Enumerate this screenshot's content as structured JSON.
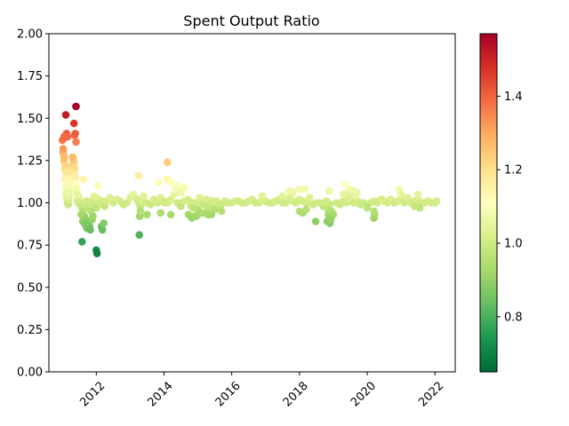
{
  "chart_data": {
    "type": "scatter",
    "title": "Spent Output Ratio",
    "xlabel": "",
    "ylabel": "",
    "xlim": [
      2010.6,
      2022.6
    ],
    "ylim": [
      0.0,
      2.0
    ],
    "x_ticks": [
      2012,
      2014,
      2016,
      2018,
      2020,
      2022
    ],
    "x_tick_labels": [
      "2012",
      "2014",
      "2016",
      "2018",
      "2020",
      "2022"
    ],
    "y_ticks": [
      0.0,
      0.25,
      0.5,
      0.75,
      1.0,
      1.25,
      1.5,
      1.75,
      2.0
    ],
    "y_tick_labels": [
      "0.00",
      "0.25",
      "0.50",
      "0.75",
      "1.00",
      "1.25",
      "1.50",
      "1.75",
      "2.00"
    ],
    "grid": false,
    "colormap": "RdYlGn_r",
    "colorbar": {
      "range": [
        0.65,
        1.57
      ],
      "ticks": [
        0.8,
        1.0,
        1.2,
        1.4
      ],
      "tick_labels": [
        "0.8",
        "1.0",
        "1.2",
        "1.4"
      ]
    },
    "x": [
      2011.0,
      2011.02,
      2011.04,
      2011.05,
      2011.07,
      2011.08,
      2011.1,
      2011.11,
      2011.12,
      2011.14,
      2011.15,
      2011.17,
      2011.18,
      2011.2,
      2011.22,
      2011.24,
      2011.26,
      2011.28,
      2011.3,
      2011.32,
      2011.34,
      2011.36,
      2011.38,
      2011.4,
      2011.42,
      2011.44,
      2011.46,
      2011.48,
      2011.02,
      2011.05,
      2011.08,
      2011.1,
      2011.12,
      2011.15,
      2011.2,
      2011.25,
      2011.3,
      2011.35,
      2011.38,
      2011.4,
      2011.42,
      2011.45,
      2011.36,
      2011.38,
      2011.4,
      2011.34,
      2011.1,
      2011.12,
      2011.05,
      2011.15,
      2011.5,
      2011.55,
      2011.6,
      2011.65,
      2011.7,
      2011.75,
      2011.8,
      2011.85,
      2011.9,
      2011.95,
      2012.0,
      2012.05,
      2012.1,
      2012.15,
      2012.2,
      2012.25,
      2011.4,
      2011.55,
      2011.65,
      2011.7,
      2011.75,
      2011.8,
      2011.85,
      2011.88,
      2011.9,
      2011.6,
      2011.72,
      2011.82,
      2011.68,
      2012.15,
      2012.18,
      2012.22,
      2011.95,
      2012.05,
      2011.58,
      2011.62,
      2012.0,
      2012.02,
      2012.3,
      2012.4,
      2012.5,
      2012.6,
      2012.7,
      2012.8,
      2012.9,
      2013.0,
      2013.1,
      2013.2,
      2013.25,
      2013.3,
      2013.35,
      2013.4,
      2013.5,
      2013.6,
      2013.7,
      2013.8,
      2013.9,
      2014.0,
      2014.1,
      2014.2,
      2014.3,
      2014.4,
      2014.5,
      2014.6,
      2014.7,
      2013.25,
      2013.28,
      2013.3,
      2013.5,
      2013.9,
      2014.1,
      2014.2,
      2014.4,
      2014.6,
      2013.27,
      2014.1,
      2014.2,
      2014.35,
      2014.5,
      2013.85,
      2014.0,
      2014.8,
      2014.9,
      2015.0,
      2015.1,
      2015.2,
      2015.3,
      2015.4,
      2015.5,
      2015.6,
      2015.7,
      2015.8,
      2015.9,
      2014.75,
      2014.85,
      2014.95,
      2015.05,
      2015.15,
      2015.25,
      2015.35,
      2015.45,
      2015.55,
      2015.65,
      2014.72,
      2014.82,
      2014.95,
      2015.15,
      2015.3,
      2015.5,
      2015.7,
      2014.9,
      2015.1,
      2015.4,
      2016.0,
      2016.2,
      2016.4,
      2016.6,
      2016.8,
      2017.0,
      2017.2,
      2017.4,
      2017.6,
      2017.8,
      2018.0,
      2018.2,
      2018.4,
      2018.6,
      2018.8,
      2016.1,
      2016.3,
      2016.5,
      2016.7,
      2016.9,
      2017.1,
      2017.3,
      2017.5,
      2017.7,
      2017.9,
      2018.1,
      2018.3,
      2018.5,
      2018.7,
      2018.9,
      2016.9,
      2017.5,
      2017.8,
      2018.0,
      2018.15,
      2018.3,
      2017.7,
      2018.0,
      2018.1,
      2018.2,
      2018.48,
      2018.8,
      2018.85,
      2018.9,
      2018.95,
      2019.0,
      2018.82,
      2018.9,
      2018.75,
      2018.88,
      2018.92,
      2019.1,
      2019.2,
      2019.3,
      2019.4,
      2019.5,
      2019.6,
      2019.7,
      2019.8,
      2019.9,
      2020.0,
      2020.1,
      2020.2,
      2020.3,
      2020.4,
      2020.5,
      2020.6,
      2020.7,
      2020.8,
      2020.9,
      2021.0,
      2021.1,
      2021.2,
      2021.3,
      2021.4,
      2021.5,
      2021.6,
      2021.7,
      2021.8,
      2021.9,
      2022.0,
      2022.05,
      2019.35,
      2019.45,
      2019.55,
      2019.65,
      2019.5,
      2019.4,
      2019.6,
      2020.45,
      2020.95,
      2021.55,
      2021.5,
      2021.4,
      2020.2,
      2020.22,
      2020.2,
      2019.3,
      2019.45,
      2019.7,
      2021.0,
      2020.0,
      2019.8
    ],
    "y": [
      1.37,
      1.3,
      1.28,
      1.25,
      1.2,
      1.14,
      1.1,
      1.06,
      1.04,
      1.02,
      1.0,
      0.99,
      1.02,
      1.04,
      1.08,
      1.12,
      1.16,
      1.2,
      1.23,
      1.26,
      1.24,
      1.2,
      1.15,
      1.1,
      1.06,
      1.02,
      1.0,
      1.03,
      1.32,
      1.27,
      1.22,
      1.18,
      1.09,
      1.06,
      1.13,
      1.18,
      1.27,
      1.21,
      1.16,
      1.11,
      1.08,
      1.05,
      1.4,
      1.41,
      1.36,
      1.47,
      1.52,
      1.41,
      1.39,
      1.39,
      1.0,
      0.98,
      0.95,
      0.99,
      1.01,
      0.97,
      0.99,
      1.0,
      1.02,
      1.0,
      0.97,
      1.02,
      1.0,
      1.01,
      0.99,
      0.98,
      1.57,
      0.93,
      0.92,
      0.9,
      0.88,
      0.86,
      0.95,
      0.9,
      0.92,
      0.89,
      0.85,
      0.84,
      0.87,
      0.86,
      0.84,
      0.88,
      1.04,
      1.1,
      0.77,
      1.14,
      0.72,
      0.7,
      1.01,
      1.03,
      1.0,
      1.02,
      1.01,
      0.99,
      1.0,
      1.03,
      1.05,
      1.02,
      1.0,
      0.98,
      1.01,
      1.04,
      1.0,
      0.99,
      1.02,
      1.0,
      1.03,
      1.01,
      1.0,
      1.02,
      1.05,
      1.0,
      0.98,
      1.01,
      1.02,
      1.16,
      0.92,
      0.95,
      0.93,
      0.94,
      1.24,
      0.93,
      1.1,
      1.09,
      0.81,
      1.14,
      1.12,
      1.08,
      1.06,
      1.12,
      1.0,
      0.98,
      1.0,
      0.96,
      1.02,
      0.99,
      0.97,
      1.01,
      0.98,
      1.0,
      0.99,
      1.01,
      1.0,
      1.01,
      0.97,
      1.0,
      1.03,
      0.99,
      1.02,
      0.98,
      1.0,
      1.01,
      0.99,
      0.93,
      0.91,
      0.92,
      0.94,
      0.93,
      0.96,
      0.95,
      0.92,
      0.94,
      0.93,
      1.0,
      1.01,
      1.0,
      1.02,
      1.0,
      1.01,
      1.0,
      1.02,
      1.0,
      1.01,
      1.02,
      1.0,
      0.99,
      1.0,
      1.01,
      1.01,
      1.0,
      1.01,
      1.0,
      1.02,
      1.0,
      1.01,
      1.0,
      1.03,
      1.0,
      1.01,
      1.0,
      1.0,
      0.98,
      0.99,
      1.04,
      1.04,
      1.06,
      1.08,
      1.08,
      1.03,
      1.07,
      0.95,
      0.94,
      0.96,
      0.89,
      0.97,
      0.93,
      0.91,
      0.95,
      0.93,
      0.89,
      0.88,
      1.0,
      1.07,
      0.9,
      1.0,
      0.99,
      1.01,
      1.0,
      1.02,
      1.0,
      1.01,
      0.99,
      1.0,
      0.98,
      1.0,
      1.01,
      1.0,
      1.02,
      1.01,
      1.0,
      1.02,
      1.0,
      1.01,
      1.02,
      1.0,
      1.03,
      1.0,
      1.01,
      1.02,
      1.0,
      1.0,
      1.01,
      1.0,
      1.0,
      1.01,
      1.11,
      1.07,
      1.06,
      1.04,
      1.08,
      1.05,
      1.07,
      1.02,
      1.08,
      0.97,
      1.05,
      0.98,
      0.91,
      0.93,
      0.95,
      1.05,
      1.03,
      1.06,
      1.05,
      0.97,
      1.0
    ]
  }
}
